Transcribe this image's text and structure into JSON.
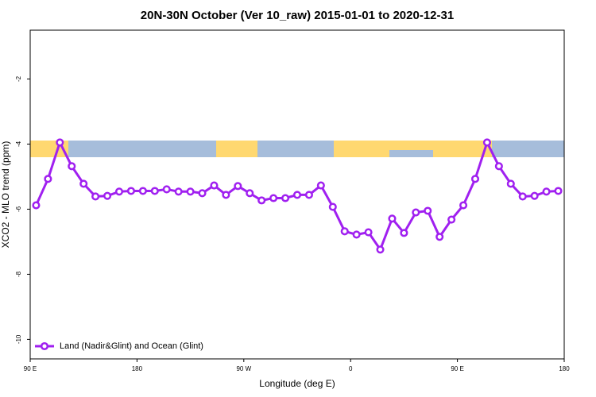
{
  "chart_data": {
    "type": "line",
    "title": "20N-30N October (Ver 10_raw)   2015-01-01 to 2020-12-31",
    "x_label": "Longitude (deg E)",
    "y_label": "XCO2 - MLO trend (ppm)",
    "xlim": [
      90,
      540
    ],
    "xticks": [
      {
        "value": 90,
        "label": "90 E"
      },
      {
        "value": 180,
        "label": "180"
      },
      {
        "value": 270,
        "label": "90 W"
      },
      {
        "value": 360,
        "label": "0"
      },
      {
        "value": 450,
        "label": "90 E"
      },
      {
        "value": 540,
        "label": "180"
      }
    ],
    "ylim": [
      -10.6,
      -0.5
    ],
    "yticks": [
      -2,
      -4,
      -6,
      -8,
      -10
    ],
    "legend": "bottomleft",
    "x": [
      95,
      105,
      115,
      125,
      135,
      145,
      155,
      165,
      175,
      185,
      195,
      205,
      215,
      225,
      235,
      245,
      255,
      265,
      275,
      285,
      295,
      305,
      315,
      325,
      335,
      345,
      355,
      365,
      375,
      385,
      395,
      405,
      415,
      425,
      435,
      445,
      455,
      465,
      475,
      485,
      495,
      505,
      515,
      525,
      535
    ],
    "series": [
      {
        "name": "Land (Nadir&Glint) and Ocean (Glint)",
        "color": "#a020f0",
        "values": [
          -5.88,
          -5.07,
          -3.95,
          -4.68,
          -5.22,
          -5.61,
          -5.59,
          -5.46,
          -5.44,
          -5.44,
          -5.44,
          -5.39,
          -5.46,
          -5.46,
          -5.51,
          -5.27,
          -5.56,
          -5.29,
          -5.51,
          -5.73,
          -5.66,
          -5.66,
          -5.56,
          -5.56,
          -5.27,
          -5.93,
          -6.68,
          -6.78,
          -6.71,
          -7.24,
          -6.29,
          -6.73,
          -6.1,
          -6.05,
          -6.85,
          -6.32,
          -5.88,
          -5.07,
          -3.95,
          -4.68,
          -5.22,
          -5.61,
          -5.59,
          -5.46,
          -5.44
        ]
      }
    ]
  }
}
